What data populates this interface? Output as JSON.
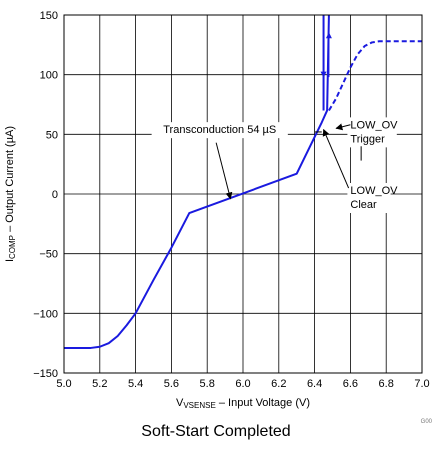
{
  "chart_data": {
    "type": "line",
    "title": "",
    "xlabel": {
      "main": "V",
      "sub": "VSENSE",
      "rest": " – Input Voltage (V)"
    },
    "ylabel": {
      "main": "I",
      "sub": "COMP",
      "rest": " – Output Current (µA)"
    },
    "xlim": [
      5.0,
      7.0
    ],
    "ylim": [
      -150,
      150
    ],
    "xticks": [
      5.0,
      5.2,
      5.4,
      5.6,
      5.8,
      6.0,
      6.2,
      6.4,
      6.6,
      6.8,
      7.0
    ],
    "yticks": [
      -150,
      -100,
      -50,
      0,
      50,
      100,
      150
    ],
    "xtick_labels": [
      "5.0",
      "5.2",
      "5.4",
      "5.6",
      "5.8",
      "6.0",
      "6.2",
      "6.4",
      "6.6",
      "6.8",
      "7.0"
    ],
    "ytick_labels": [
      "−150",
      "−100",
      "−50",
      "0",
      "50",
      "100",
      "150"
    ],
    "grid": true,
    "color": "#1a1adf",
    "series": [
      {
        "style": "solid",
        "x": [
          5.0,
          5.15,
          5.2,
          5.25,
          5.3,
          5.35,
          5.4,
          5.5,
          5.6,
          5.7,
          6.3,
          6.44,
          6.47,
          6.48
        ],
        "y": [
          -129,
          -129,
          -128,
          -125,
          -119,
          -110,
          -100,
          -72,
          -45,
          -16,
          17,
          60,
          70,
          150
        ]
      },
      {
        "style": "solid",
        "x": [
          6.45,
          6.45
        ],
        "y": [
          70,
          150
        ]
      },
      {
        "style": "dashed",
        "x": [
          6.48,
          6.52,
          6.56,
          6.6,
          6.64,
          6.68,
          6.72,
          6.76,
          6.8,
          6.9,
          7.0
        ],
        "y": [
          70,
          80,
          93,
          106,
          117,
          124,
          127,
          128,
          128,
          128,
          128
        ]
      }
    ],
    "annotations": [
      {
        "lines": [
          "Transconduction 54 µS"
        ],
        "x": 5.87,
        "y": 51
      },
      {
        "lines": [
          "LOW_OV",
          "Trigger"
        ],
        "x": 6.6,
        "y": 55
      },
      {
        "lines": [
          "LOW_OV",
          "Clear"
        ],
        "x": 6.6,
        "y": 0
      }
    ],
    "figure_id": "G00",
    "caption": "Soft-Start Completed"
  }
}
